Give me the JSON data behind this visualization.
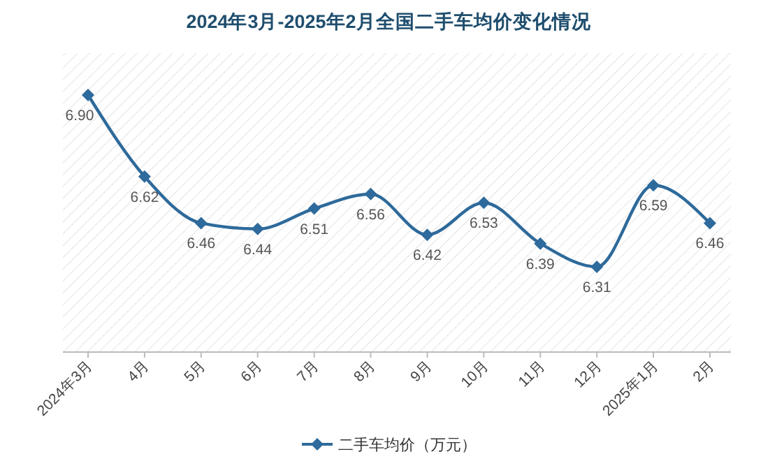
{
  "chart_data": {
    "type": "line",
    "title": "2024年3月-2025年2月全国二手车均价变化情况",
    "categories": [
      "2024年3月",
      "4月",
      "5月",
      "6月",
      "7月",
      "8月",
      "9月",
      "10月",
      "11月",
      "12月",
      "2025年1月",
      "2月"
    ],
    "series": [
      {
        "name": "二手车均价（万元）",
        "color": "#2e6a9b",
        "values": [
          6.9,
          6.62,
          6.46,
          6.44,
          6.51,
          6.56,
          6.42,
          6.53,
          6.39,
          6.31,
          6.59,
          6.46
        ],
        "value_labels": [
          "6.90",
          "6.62",
          "6.46",
          "6.44",
          "6.51",
          "6.56",
          "6.42",
          "6.53",
          "6.39",
          "6.31",
          "6.59",
          "6.46"
        ]
      }
    ],
    "marker": "diamond",
    "legend": "bottom"
  }
}
